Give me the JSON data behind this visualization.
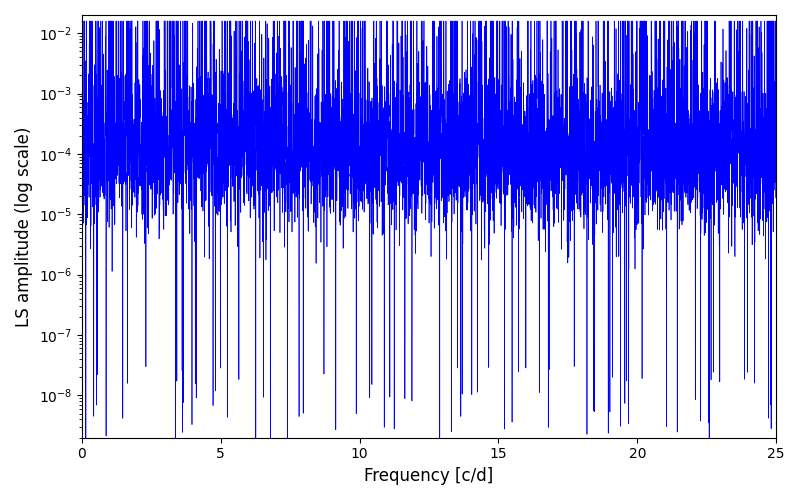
{
  "title": "",
  "xlabel": "Frequency [c/d]",
  "ylabel": "LS amplitude (log scale)",
  "xlim": [
    0,
    25
  ],
  "ylim_log": [
    -8.7,
    -1.7
  ],
  "line_color": "#0000ff",
  "line_width": 0.5,
  "figsize": [
    8.0,
    5.0
  ],
  "dpi": 100,
  "freq_max": 25.0,
  "n_points": 6000,
  "seed": 42
}
